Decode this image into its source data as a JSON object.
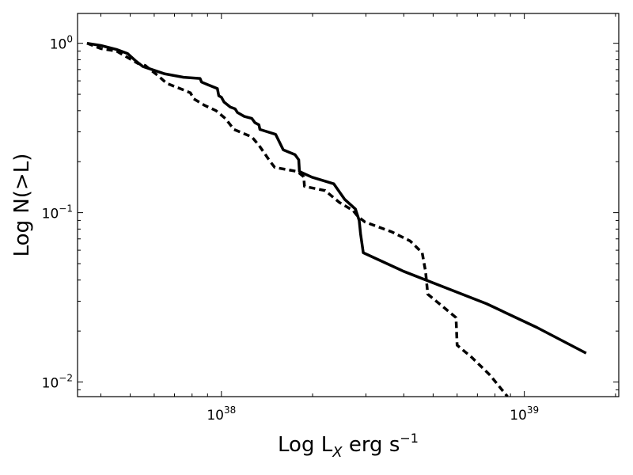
{
  "chart_data": {
    "type": "line",
    "title": "",
    "xlabel": "Log L",
    "xlabel_sub": "X",
    "xlabel_unit": " erg s",
    "xlabel_sup": "−1",
    "ylabel": "Log N(>L)",
    "xscale": "log",
    "yscale": "log",
    "xlim": [
      3.35e+37,
      2.05e+39
    ],
    "ylim": [
      0.0082,
      1.5
    ],
    "grid": false,
    "legend": "none",
    "x_ticks": [
      {
        "value": 1e+38,
        "base": "10",
        "exp": "38"
      },
      {
        "value": 1e+39,
        "base": "10",
        "exp": "39"
      }
    ],
    "y_ticks": [
      {
        "value": 1,
        "base": "10",
        "exp": "0"
      },
      {
        "value": 0.1,
        "base": "10",
        "exp": "-1"
      },
      {
        "value": 0.01,
        "base": "10",
        "exp": "-2"
      }
    ],
    "series": [
      {
        "style": "solid",
        "color": "#000000",
        "points": [
          [
            3.6e+37,
            1.0
          ],
          [
            4e+37,
            0.97
          ],
          [
            4.5e+37,
            0.92
          ],
          [
            4.9e+37,
            0.87
          ],
          [
            5.2e+37,
            0.79
          ],
          [
            5.5e+37,
            0.73
          ],
          [
            6.5e+37,
            0.66
          ],
          [
            7.5e+37,
            0.63
          ],
          [
            8.5e+37,
            0.62
          ],
          [
            8.6e+37,
            0.59
          ],
          [
            9e+37,
            0.57
          ],
          [
            9.7e+37,
            0.54
          ],
          [
            9.8e+37,
            0.49
          ],
          [
            1e+38,
            0.48
          ],
          [
            1.02e+38,
            0.45
          ],
          [
            1.07e+38,
            0.42
          ],
          [
            1.11e+38,
            0.41
          ],
          [
            1.13e+38,
            0.39
          ],
          [
            1.19e+38,
            0.37
          ],
          [
            1.26e+38,
            0.36
          ],
          [
            1.29e+38,
            0.34
          ],
          [
            1.33e+38,
            0.33
          ],
          [
            1.34e+38,
            0.31
          ],
          [
            1.51e+38,
            0.29
          ],
          [
            1.6e+38,
            0.235
          ],
          [
            1.75e+38,
            0.22
          ],
          [
            1.8e+38,
            0.205
          ],
          [
            1.81e+38,
            0.175
          ],
          [
            1.99e+38,
            0.162
          ],
          [
            2.35e+38,
            0.148
          ],
          [
            2.55e+38,
            0.12
          ],
          [
            2.77e+38,
            0.105
          ],
          [
            2.85e+38,
            0.09
          ],
          [
            2.88e+38,
            0.075
          ],
          [
            2.94e+38,
            0.058
          ],
          [
            4e+38,
            0.045
          ],
          [
            5.5e+38,
            0.036
          ],
          [
            7.5e+38,
            0.029
          ],
          [
            1.1e+39,
            0.021
          ],
          [
            1.6e+39,
            0.0148
          ]
        ]
      },
      {
        "style": "dashed",
        "color": "#000000",
        "points": [
          [
            3.6e+37,
            1.0
          ],
          [
            4e+37,
            0.93
          ],
          [
            4.5e+37,
            0.9
          ],
          [
            5.3e+37,
            0.76
          ],
          [
            5.6e+37,
            0.74
          ],
          [
            6.2e+37,
            0.64
          ],
          [
            6.6e+37,
            0.58
          ],
          [
            7.5e+37,
            0.53
          ],
          [
            7.9e+37,
            0.51
          ],
          [
            8.1e+37,
            0.47
          ],
          [
            8.8e+37,
            0.43
          ],
          [
            9.6e+37,
            0.4
          ],
          [
            1.03e+38,
            0.36
          ],
          [
            1.1e+38,
            0.31
          ],
          [
            1.26e+38,
            0.28
          ],
          [
            1.33e+38,
            0.25
          ],
          [
            1.45e+38,
            0.2
          ],
          [
            1.5e+38,
            0.185
          ],
          [
            1.78e+38,
            0.175
          ],
          [
            1.87e+38,
            0.163
          ],
          [
            1.88e+38,
            0.143
          ],
          [
            2.2e+38,
            0.135
          ],
          [
            2.45e+38,
            0.115
          ],
          [
            2.72e+38,
            0.103
          ],
          [
            2.82e+38,
            0.095
          ],
          [
            2.98e+38,
            0.088
          ],
          [
            3.65e+38,
            0.077
          ],
          [
            4.2e+38,
            0.068
          ],
          [
            4.6e+38,
            0.058
          ],
          [
            4.72e+38,
            0.045
          ],
          [
            4.8e+38,
            0.033
          ],
          [
            5.5e+38,
            0.027
          ],
          [
            5.95e+38,
            0.024
          ],
          [
            6e+38,
            0.0165
          ],
          [
            6.7e+38,
            0.014
          ],
          [
            7.7e+38,
            0.011
          ],
          [
            8.8e+38,
            0.0082
          ]
        ]
      }
    ]
  }
}
